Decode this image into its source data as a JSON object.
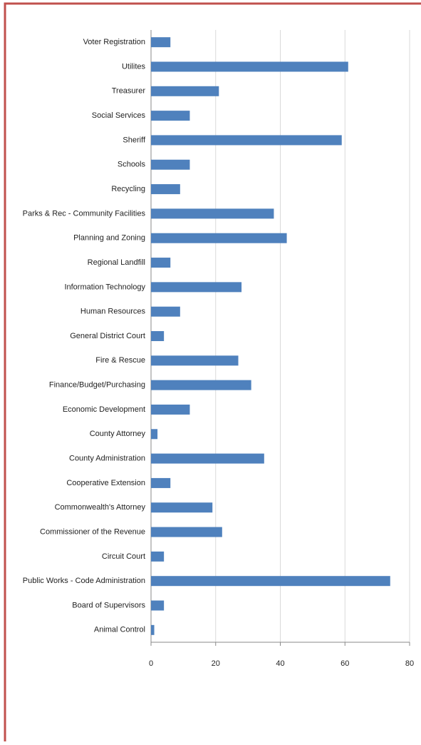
{
  "chart_data": {
    "type": "bar",
    "orientation": "horizontal",
    "categories": [
      "Voter Registration",
      "Utilites",
      "Treasurer",
      "Social Services",
      "Sheriff",
      "Schools",
      "Recycling",
      "Parks & Rec - Community Facilities",
      "Planning and Zoning",
      "Regional Landfill",
      "Information Technology",
      "Human Resources",
      "General District Court",
      "Fire & Rescue",
      "Finance/Budget/Purchasing",
      "Economic Development",
      "County Attorney",
      "County Administration",
      "Cooperative Extension",
      "Commonwealth's Attorney",
      "Commissioner of the Revenue",
      "Circuit Court",
      "Public Works - Code Administration",
      "Board of Supervisors",
      "Animal Control"
    ],
    "values": [
      6,
      61,
      21,
      12,
      59,
      12,
      9,
      38,
      42,
      6,
      28,
      9,
      4,
      27,
      31,
      12,
      2,
      35,
      6,
      19,
      22,
      4,
      74,
      4,
      1
    ],
    "color": "#4f81bd",
    "xlim": [
      0,
      80
    ],
    "xticks": [
      0,
      20,
      40,
      60,
      80
    ],
    "grid": true
  }
}
